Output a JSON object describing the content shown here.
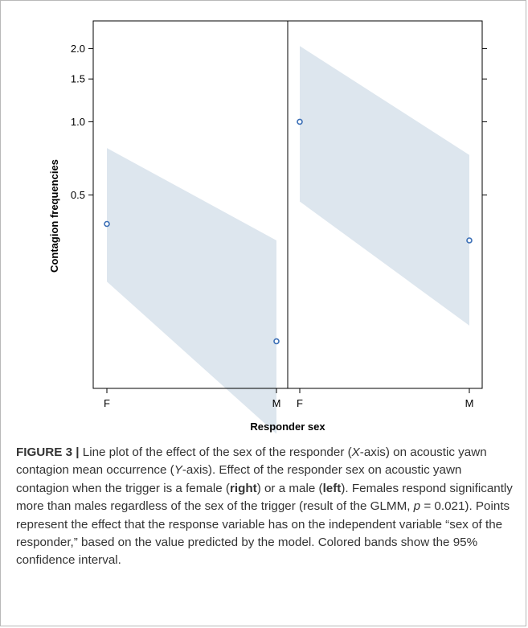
{
  "chart_data": {
    "type": "scatter",
    "ylabel": "Contagion frequencies",
    "xlabel": "Responder sex",
    "y_scale": "log",
    "ylim": [
      0.08,
      2.6
    ],
    "y_ticks": [
      {
        "value": 0.5,
        "label": "0.5"
      },
      {
        "value": 1.0,
        "label": "1.0"
      },
      {
        "value": 1.5,
        "label": "1.5"
      },
      {
        "value": 2.0,
        "label": "2.0"
      }
    ],
    "band_color": "#dde6ee",
    "point_color": "#3b6fb6",
    "panels": [
      {
        "trigger": "male",
        "position": "left",
        "categories": [
          "F",
          "M"
        ],
        "values": [
          0.38,
          0.125
        ],
        "ci_lower": [
          0.22,
          0.052
        ],
        "ci_upper": [
          0.78,
          0.325
        ]
      },
      {
        "trigger": "female",
        "position": "right",
        "categories": [
          "F",
          "M"
        ],
        "values": [
          1.0,
          0.325
        ],
        "ci_lower": [
          0.47,
          0.145
        ],
        "ci_upper": [
          2.05,
          0.73
        ]
      }
    ]
  },
  "caption": {
    "label": "FIGURE 3",
    "separator": "|",
    "segments": [
      {
        "t": " Line plot of the effect of the sex of the responder (",
        "s": "n"
      },
      {
        "t": "X",
        "s": "i"
      },
      {
        "t": "-axis) on acoustic yawn contagion mean occurrence (",
        "s": "n"
      },
      {
        "t": "Y",
        "s": "i"
      },
      {
        "t": "-axis). Effect of the responder sex on acoustic yawn contagion when the trigger is a female (",
        "s": "n"
      },
      {
        "t": "right",
        "s": "b"
      },
      {
        "t": ") or a male (",
        "s": "n"
      },
      {
        "t": "left",
        "s": "b"
      },
      {
        "t": "). Females respond significantly more than males regardless of the sex of the trigger (result of the GLMM, ",
        "s": "n"
      },
      {
        "t": "p",
        "s": "i"
      },
      {
        "t": " = 0.021). Points represent the effect that the response variable has on the independent variable “sex of the responder,” based on the value predicted by the model. Colored bands show the 95% confidence interval.",
        "s": "n"
      }
    ]
  }
}
